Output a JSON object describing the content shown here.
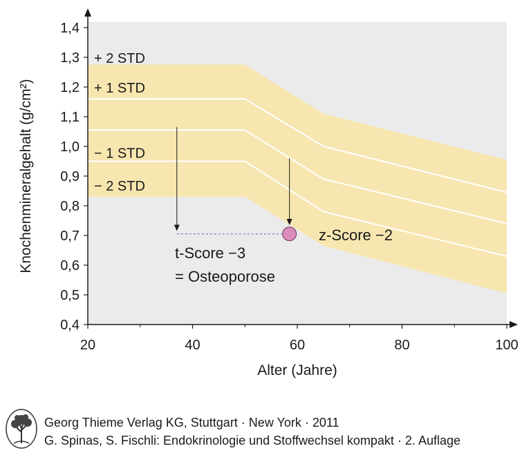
{
  "chart_data": {
    "type": "area",
    "xlabel": "Alter (Jahre)",
    "ylabel": "Knochenmineralgehalt (g/cm²)",
    "xlim": [
      20,
      100
    ],
    "ylim": [
      0.4,
      1.4
    ],
    "x_ticks": [
      "20",
      "40",
      "60",
      "80",
      "100"
    ],
    "y_ticks": [
      "0,4",
      "0,5",
      "0,6",
      "0,7",
      "0,8",
      "0,9",
      "1,0",
      "1,1",
      "1,2",
      "1,3",
      "1,4"
    ],
    "grid": false,
    "band_color": "#f7e6b0",
    "plot_background": "#ebebeb",
    "bands": {
      "x": [
        20,
        50,
        65,
        100
      ],
      "plus2": [
        1.275,
        1.275,
        1.11,
        0.955
      ],
      "plus1": [
        1.16,
        1.16,
        1.0,
        0.845
      ],
      "minus1": [
        0.95,
        0.95,
        0.78,
        0.63
      ],
      "minus2": [
        0.83,
        0.83,
        0.665,
        0.505
      ],
      "centre": [
        1.055,
        1.055,
        0.89,
        0.74
      ]
    },
    "series": [
      {
        "name": "+ 2 STD",
        "values": [
          1.275,
          1.275,
          1.11,
          0.955
        ]
      },
      {
        "name": "+ 1 STD",
        "values": [
          1.16,
          1.16,
          1.0,
          0.845
        ]
      },
      {
        "name": "− 1 STD",
        "values": [
          0.95,
          0.95,
          0.78,
          0.63
        ]
      },
      {
        "name": "− 2 STD",
        "values": [
          0.83,
          0.83,
          0.665,
          0.505
        ]
      }
    ],
    "series_labels": [
      {
        "text": "+ 2 STD",
        "y": 1.3
      },
      {
        "text": "+ 1 STD",
        "y": 1.2
      },
      {
        "text": "− 1 STD",
        "y": 0.98
      },
      {
        "text": "− 2 STD",
        "y": 0.87
      }
    ],
    "patient_point": {
      "x": 58.5,
      "y": 0.71,
      "color": "#d98cb8"
    },
    "t_score_arrow": {
      "x": 37,
      "y_from": 1.065,
      "y_to": 0.715
    },
    "z_score_arrow": {
      "x": 58.5,
      "y_from": 0.96,
      "y_to": 0.735
    },
    "annotations": {
      "t_score": "t-Score −3",
      "t_score_line2": "= Osteoporose",
      "z_score": "z-Score −2"
    }
  },
  "footer": {
    "publisher": "Georg Thieme Verlag KG, Stuttgart · New York · 2011",
    "book": "G. Spinas, S. Fischli: Endokrinologie und Stoffwechsel kompakt · 2. Auflage",
    "logo_icon": "tree-logo-icon"
  }
}
